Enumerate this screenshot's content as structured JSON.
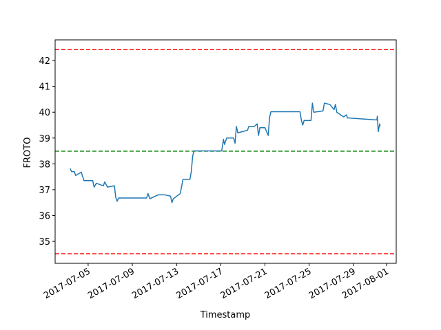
{
  "chart_data": {
    "type": "line",
    "xlabel": "Timestamp",
    "ylabel": "FROTO",
    "x": [
      "2017-07-03T09:00",
      "2017-07-03T12:00",
      "2017-07-03T18:00",
      "2017-07-03T21:00",
      "2017-07-04T09:00",
      "2017-07-04T15:00",
      "2017-07-05T10:00",
      "2017-07-05T13:00",
      "2017-07-05T18:00",
      "2017-07-06T09:00",
      "2017-07-06T12:00",
      "2017-07-06T18:00",
      "2017-07-07T09:00",
      "2017-07-07T12:00",
      "2017-07-07T15:00",
      "2017-07-07T18:00",
      "2017-07-10T07:00",
      "2017-07-10T10:00",
      "2017-07-10T14:00",
      "2017-07-11T08:00",
      "2017-07-11T23:00",
      "2017-07-12T11:00",
      "2017-07-12T14:00",
      "2017-07-12T17:00",
      "2017-07-13T08:00",
      "2017-07-13T14:00",
      "2017-07-14T05:00",
      "2017-07-14T08:00",
      "2017-07-14T11:00",
      "2017-07-14T14:00",
      "2017-07-17T02:00",
      "2017-07-17T06:00",
      "2017-07-17T08:00",
      "2017-07-17T13:00",
      "2017-07-18T04:00",
      "2017-07-18T07:00",
      "2017-07-18T10:00",
      "2017-07-18T13:00",
      "2017-07-19T10:00",
      "2017-07-19T13:00",
      "2017-07-20T01:00",
      "2017-07-20T07:00",
      "2017-07-20T10:00",
      "2017-07-20T13:00",
      "2017-07-21T00:00",
      "2017-07-21T07:00",
      "2017-07-21T10:00",
      "2017-07-21T13:00",
      "2017-07-24T04:00",
      "2017-07-24T07:00",
      "2017-07-24T10:00",
      "2017-07-24T13:00",
      "2017-07-25T04:00",
      "2017-07-25T07:00",
      "2017-07-25T10:00",
      "2017-07-26T06:00",
      "2017-07-26T09:00",
      "2017-07-26T21:00",
      "2017-07-27T06:00",
      "2017-07-27T09:00",
      "2017-07-27T12:00",
      "2017-07-28T03:00",
      "2017-07-28T09:00",
      "2017-07-28T11:00",
      "2017-07-31T03:00",
      "2017-07-31T04:00",
      "2017-07-31T06:00",
      "2017-07-31T09:00",
      "2017-07-31T10:00"
    ],
    "values": [
      37.82,
      37.7,
      37.7,
      37.55,
      37.68,
      37.35,
      37.35,
      37.1,
      37.25,
      37.15,
      37.3,
      37.1,
      37.15,
      36.7,
      36.55,
      36.68,
      36.68,
      36.85,
      36.65,
      36.8,
      36.8,
      36.75,
      36.5,
      36.65,
      36.85,
      37.4,
      37.4,
      37.7,
      38.3,
      38.5,
      38.5,
      38.95,
      38.75,
      39.0,
      39.0,
      38.8,
      39.45,
      39.2,
      39.3,
      39.45,
      39.45,
      39.55,
      39.1,
      39.4,
      39.4,
      39.1,
      39.8,
      40.02,
      40.02,
      39.7,
      39.5,
      39.68,
      39.68,
      40.35,
      40.0,
      40.05,
      40.35,
      40.3,
      40.1,
      40.3,
      40.0,
      39.82,
      39.9,
      39.78,
      39.7,
      39.85,
      39.25,
      39.55,
      39.45
    ],
    "color": "#1f77b4",
    "hlines": [
      {
        "value": 42.43,
        "color": "#ff0000"
      },
      {
        "value": 38.49,
        "color": "#008000"
      },
      {
        "value": 34.52,
        "color": "#ff0000"
      }
    ],
    "xlim": [
      "2017-07-02T00:20",
      "2017-08-01T21:00"
    ],
    "xticks": [
      "2017-07-05",
      "2017-07-09",
      "2017-07-13",
      "2017-07-17",
      "2017-07-21",
      "2017-07-25",
      "2017-07-29",
      "2017-08-01"
    ],
    "ylim": [
      34.15,
      42.8
    ],
    "yticks": [
      35,
      36,
      37,
      38,
      39,
      40,
      41,
      42
    ]
  }
}
